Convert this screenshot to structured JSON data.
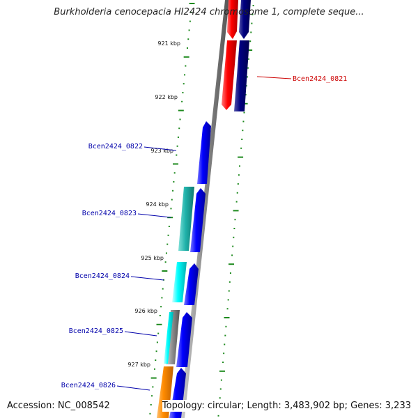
{
  "title": "Burkholderia cenocepacia HI2424 chromosome 1, complete seque...",
  "footer": {
    "accession": "Accession: NC_008542",
    "topology": "Topology: circular; Length: 3,483,902 bp; Genes: 3,233"
  },
  "ticks": [
    "921 kbp",
    "922 kbp",
    "923 kbp",
    "924 kbp",
    "925 kbp",
    "926 kbp",
    "927 kbp"
  ],
  "genes": [
    {
      "label": "Bcen2424_0821",
      "color": "#cc0000"
    },
    {
      "label": "Bcen2424_0822",
      "color": "#0000aa"
    },
    {
      "label": "Bcen2424_0823",
      "color": "#0000aa"
    },
    {
      "label": "Bcen2424_0824",
      "color": "#0000aa"
    },
    {
      "label": "Bcen2424_0825",
      "color": "#0000aa"
    },
    {
      "label": "Bcen2424_0826",
      "color": "#0000aa"
    }
  ],
  "colors": {
    "backbone": "#888888",
    "tick": "#1e8a1e",
    "red_feature": "#ff0000",
    "navy_feature": "#000080",
    "blue_feature": "#0000ff",
    "teal_feature": "#20b2aa",
    "cyan_feature": "#00ffff",
    "orange_feature": "#ff8c00"
  }
}
